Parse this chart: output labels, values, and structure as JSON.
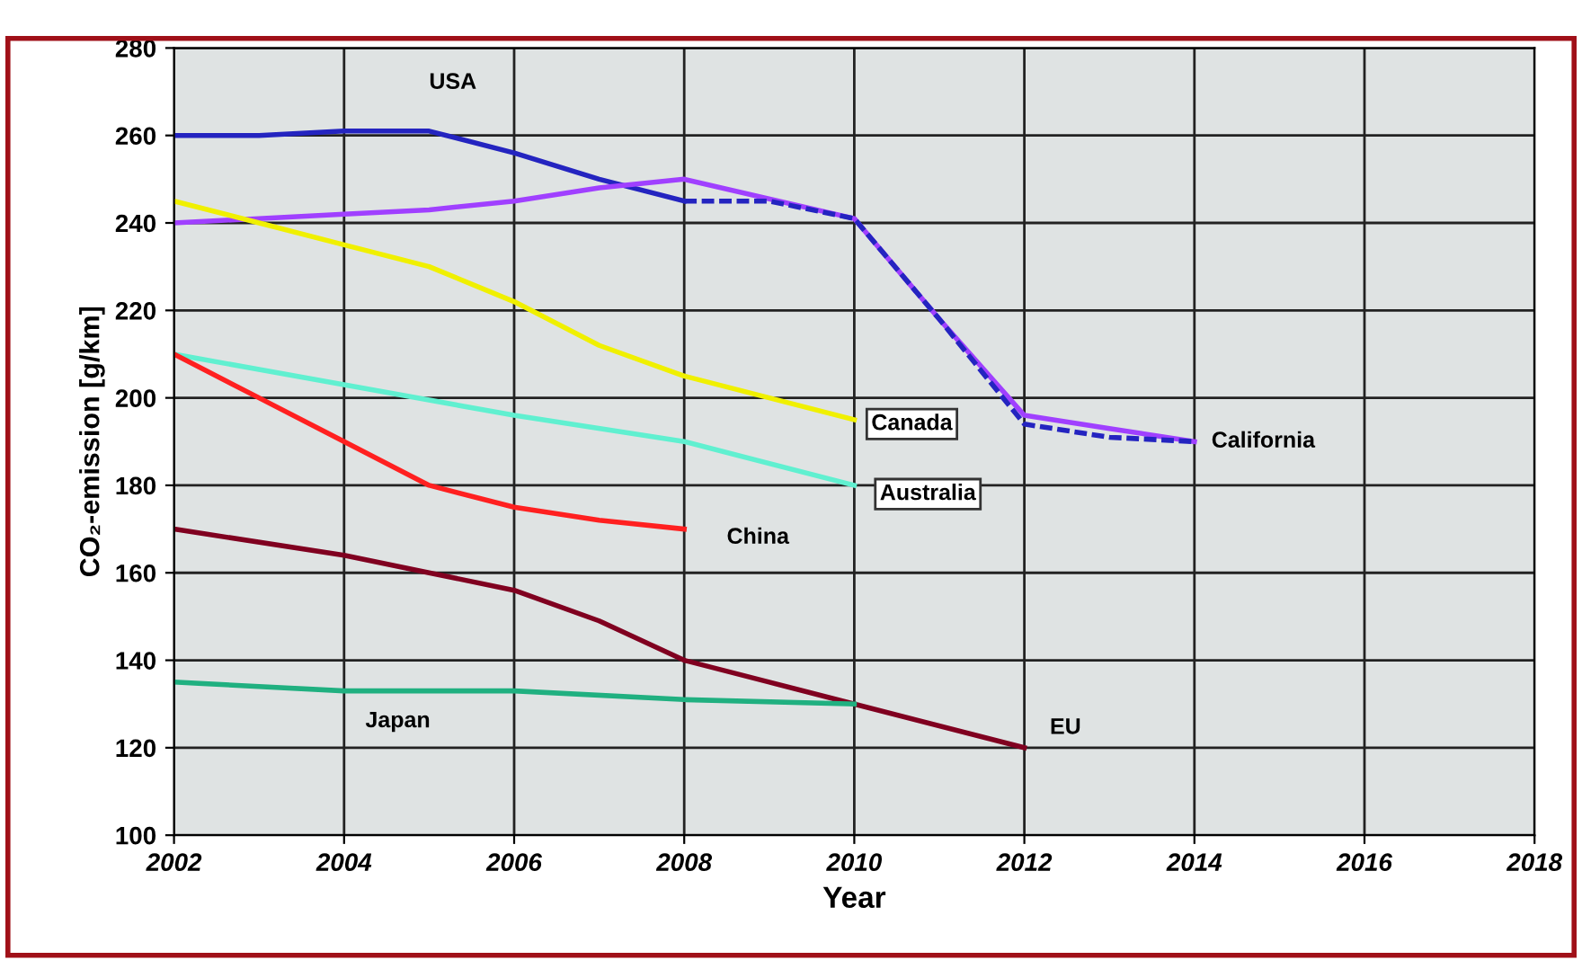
{
  "chart_data": {
    "type": "line",
    "xlabel": "Year",
    "ylabel": "CO₂-emission [g/km]",
    "xlim": [
      2002,
      2018
    ],
    "xticks": [
      2002,
      2004,
      2006,
      2008,
      2010,
      2012,
      2014,
      2016,
      2018
    ],
    "ylim": [
      100,
      280
    ],
    "yticks": [
      100,
      120,
      140,
      160,
      180,
      200,
      220,
      240,
      260,
      280
    ],
    "grid": true,
    "marker": "none",
    "series": [
      {
        "name": "USA",
        "color": "#2424c0",
        "line_style": "solid",
        "x": [
          2002,
          2003,
          2004,
          2005,
          2006,
          2007,
          2008
        ],
        "values": [
          260,
          260,
          261,
          261,
          256,
          250,
          245
        ]
      },
      {
        "color": "#2424c0",
        "line_style": "dashed",
        "x": [
          2008,
          2009,
          2010,
          2011,
          2012,
          2013,
          2014
        ],
        "values": [
          245,
          245,
          241,
          218,
          194,
          191,
          190
        ]
      },
      {
        "name": "California",
        "color": "#a040ff",
        "line_style": "solid",
        "x": [
          2002,
          2004,
          2005,
          2006,
          2007,
          2008,
          2010,
          2011,
          2012,
          2013,
          2014
        ],
        "values": [
          240,
          242,
          243,
          245,
          248,
          250,
          241,
          218,
          196,
          193,
          190
        ]
      },
      {
        "name": "Canada",
        "color": "#f0f000",
        "line_style": "solid",
        "x": [
          2002,
          2003,
          2004,
          2005,
          2006,
          2007,
          2008,
          2009,
          2010
        ],
        "values": [
          245,
          240,
          235,
          230,
          222,
          212,
          205,
          200,
          195
        ]
      },
      {
        "name": "Australia",
        "color": "#60f0d0",
        "line_style": "solid",
        "x": [
          2002,
          2004,
          2006,
          2008,
          2010
        ],
        "values": [
          210,
          203,
          196,
          190,
          180
        ]
      },
      {
        "name": "China",
        "color": "#ff2020",
        "line_style": "solid",
        "x": [
          2002,
          2003,
          2004,
          2005,
          2006,
          2007,
          2008
        ],
        "values": [
          210,
          200,
          190,
          180,
          175,
          172,
          170
        ]
      },
      {
        "name": "EU",
        "color": "#800020",
        "line_style": "solid",
        "x": [
          2002,
          2004,
          2005,
          2006,
          2007,
          2008,
          2009,
          2010,
          2012
        ],
        "values": [
          170,
          164,
          160,
          156,
          149,
          140,
          135,
          130,
          120
        ]
      },
      {
        "name": "Japan",
        "color": "#20b080",
        "line_style": "solid",
        "x": [
          2002,
          2004,
          2006,
          2008,
          2010
        ],
        "values": [
          135,
          133,
          133,
          131,
          130
        ]
      }
    ]
  }
}
